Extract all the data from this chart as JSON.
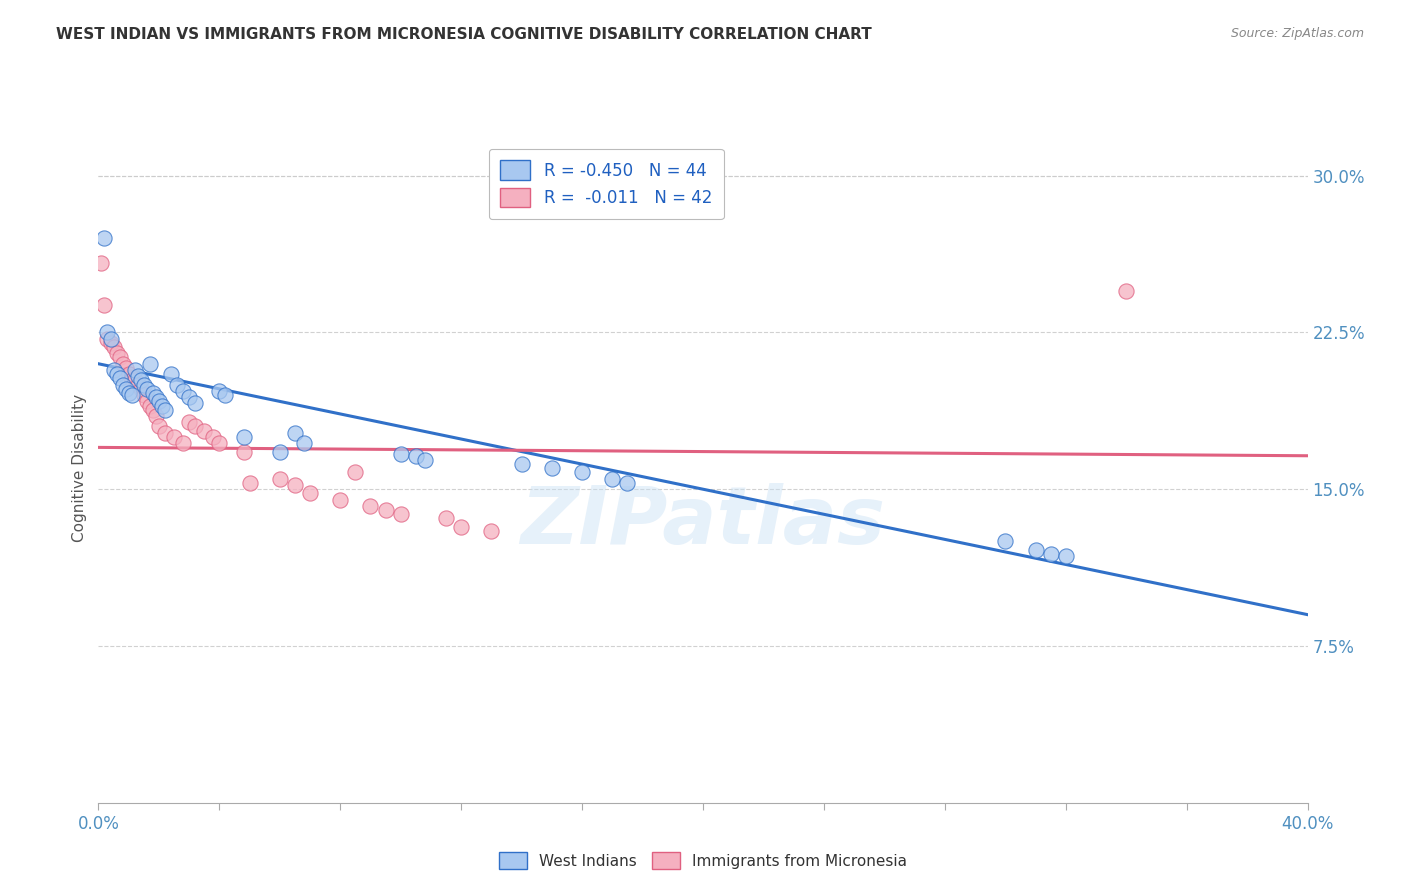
{
  "title": "WEST INDIAN VS IMMIGRANTS FROM MICRONESIA COGNITIVE DISABILITY CORRELATION CHART",
  "source": "Source: ZipAtlas.com",
  "ylabel": "Cognitive Disability",
  "xlim": [
    0.0,
    0.4
  ],
  "ylim": [
    0.0,
    0.32
  ],
  "xtick_positions": [
    0.0,
    0.04,
    0.08,
    0.12,
    0.16,
    0.2,
    0.24,
    0.28,
    0.32,
    0.36,
    0.4
  ],
  "yticks_right": [
    0.075,
    0.15,
    0.225,
    0.3
  ],
  "yticklabels_right": [
    "7.5%",
    "15.0%",
    "22.5%",
    "30.0%"
  ],
  "legend_blue_r": "-0.450",
  "legend_blue_n": "44",
  "legend_pink_r": "-0.011",
  "legend_pink_n": "42",
  "scatter_blue": [
    [
      0.002,
      0.27
    ],
    [
      0.003,
      0.225
    ],
    [
      0.004,
      0.222
    ],
    [
      0.005,
      0.207
    ],
    [
      0.006,
      0.205
    ],
    [
      0.007,
      0.203
    ],
    [
      0.008,
      0.2
    ],
    [
      0.009,
      0.198
    ],
    [
      0.01,
      0.196
    ],
    [
      0.011,
      0.195
    ],
    [
      0.012,
      0.207
    ],
    [
      0.013,
      0.204
    ],
    [
      0.014,
      0.202
    ],
    [
      0.015,
      0.2
    ],
    [
      0.016,
      0.198
    ],
    [
      0.017,
      0.21
    ],
    [
      0.018,
      0.196
    ],
    [
      0.019,
      0.194
    ],
    [
      0.02,
      0.192
    ],
    [
      0.021,
      0.19
    ],
    [
      0.022,
      0.188
    ],
    [
      0.024,
      0.205
    ],
    [
      0.026,
      0.2
    ],
    [
      0.028,
      0.197
    ],
    [
      0.03,
      0.194
    ],
    [
      0.032,
      0.191
    ],
    [
      0.04,
      0.197
    ],
    [
      0.042,
      0.195
    ],
    [
      0.048,
      0.175
    ],
    [
      0.06,
      0.168
    ],
    [
      0.065,
      0.177
    ],
    [
      0.068,
      0.172
    ],
    [
      0.1,
      0.167
    ],
    [
      0.105,
      0.166
    ],
    [
      0.108,
      0.164
    ],
    [
      0.14,
      0.162
    ],
    [
      0.15,
      0.16
    ],
    [
      0.16,
      0.158
    ],
    [
      0.17,
      0.155
    ],
    [
      0.175,
      0.153
    ],
    [
      0.3,
      0.125
    ],
    [
      0.31,
      0.121
    ],
    [
      0.315,
      0.119
    ],
    [
      0.32,
      0.118
    ]
  ],
  "scatter_pink": [
    [
      0.001,
      0.258
    ],
    [
      0.002,
      0.238
    ],
    [
      0.003,
      0.222
    ],
    [
      0.004,
      0.22
    ],
    [
      0.005,
      0.218
    ],
    [
      0.006,
      0.215
    ],
    [
      0.007,
      0.213
    ],
    [
      0.008,
      0.21
    ],
    [
      0.009,
      0.208
    ],
    [
      0.01,
      0.205
    ],
    [
      0.011,
      0.202
    ],
    [
      0.012,
      0.202
    ],
    [
      0.013,
      0.2
    ],
    [
      0.014,
      0.198
    ],
    [
      0.015,
      0.195
    ],
    [
      0.016,
      0.192
    ],
    [
      0.017,
      0.19
    ],
    [
      0.018,
      0.188
    ],
    [
      0.019,
      0.185
    ],
    [
      0.02,
      0.18
    ],
    [
      0.022,
      0.177
    ],
    [
      0.025,
      0.175
    ],
    [
      0.028,
      0.172
    ],
    [
      0.03,
      0.182
    ],
    [
      0.032,
      0.18
    ],
    [
      0.035,
      0.178
    ],
    [
      0.038,
      0.175
    ],
    [
      0.04,
      0.172
    ],
    [
      0.048,
      0.168
    ],
    [
      0.05,
      0.153
    ],
    [
      0.06,
      0.155
    ],
    [
      0.065,
      0.152
    ],
    [
      0.07,
      0.148
    ],
    [
      0.08,
      0.145
    ],
    [
      0.085,
      0.158
    ],
    [
      0.09,
      0.142
    ],
    [
      0.095,
      0.14
    ],
    [
      0.1,
      0.138
    ],
    [
      0.115,
      0.136
    ],
    [
      0.12,
      0.132
    ],
    [
      0.13,
      0.13
    ],
    [
      0.34,
      0.245
    ]
  ],
  "blue_line_x": [
    0.0,
    0.4
  ],
  "blue_line_y": [
    0.21,
    0.09
  ],
  "pink_line_x": [
    0.0,
    0.4
  ],
  "pink_line_y": [
    0.17,
    0.166
  ],
  "blue_color": "#A8C8F0",
  "pink_color": "#F5B0C0",
  "blue_line_color": "#3070C8",
  "pink_line_color": "#E06080",
  "watermark": "ZIPatlas",
  "bg_color": "#FFFFFF",
  "grid_color": "#CCCCCC"
}
